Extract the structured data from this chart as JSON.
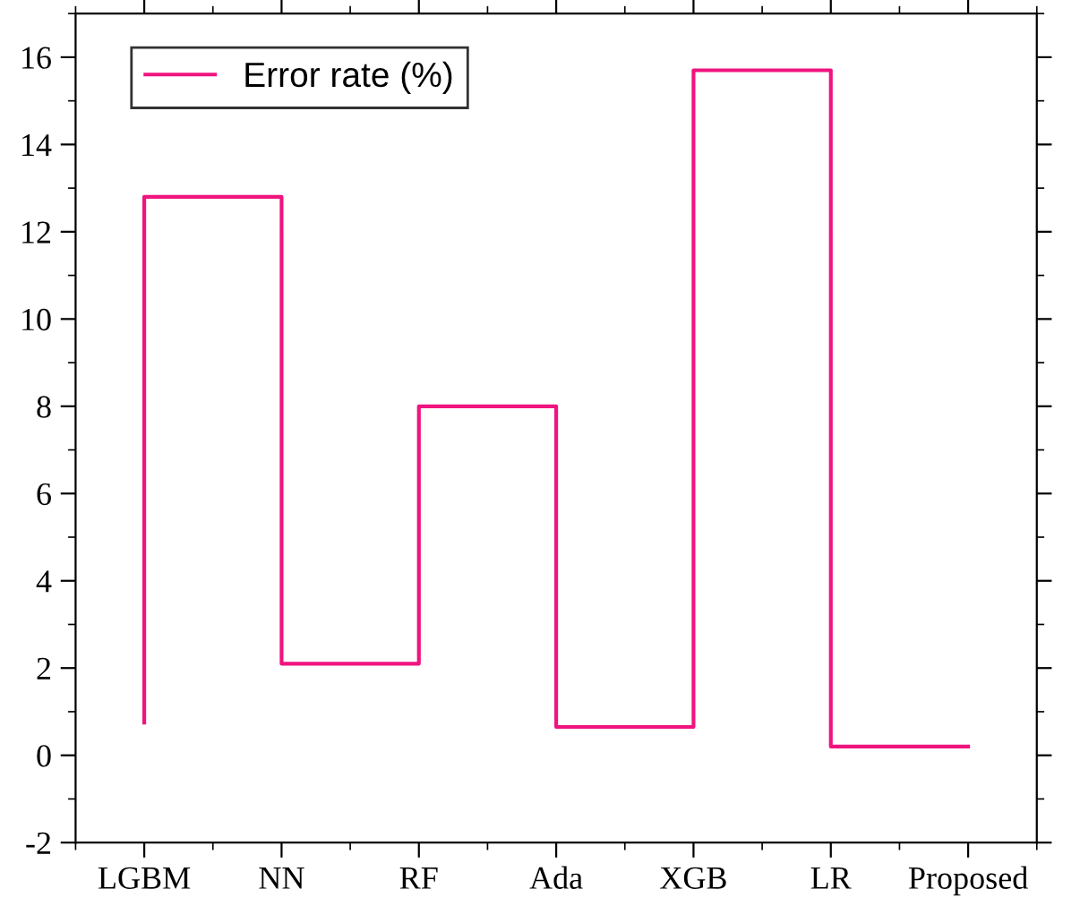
{
  "chart_data": {
    "type": "step",
    "categories": [
      "LGBM",
      "NN",
      "RF",
      "Ada",
      "XGB",
      "LR",
      "Proposed"
    ],
    "series": [
      {
        "name": "Error rate (%)",
        "color": "#f0147f",
        "values": [
          0.75,
          12.8,
          2.1,
          8.0,
          0.65,
          15.7,
          0.2
        ]
      }
    ],
    "ylim": [
      -2,
      17
    ],
    "yticks": [
      -2,
      0,
      2,
      4,
      6,
      8,
      10,
      12,
      14,
      16
    ],
    "legend": "top left",
    "grid": false
  }
}
